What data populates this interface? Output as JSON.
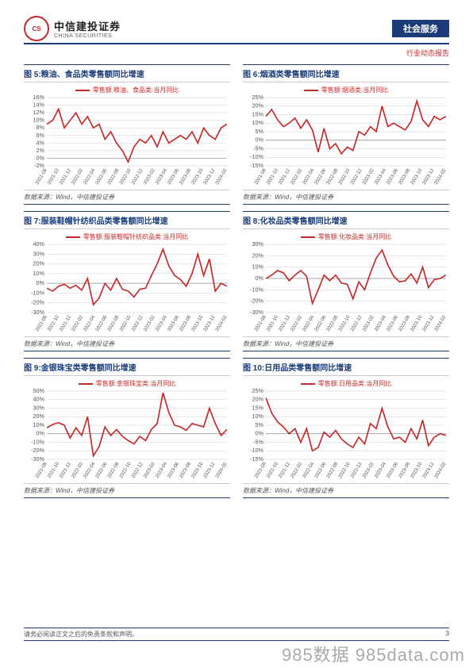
{
  "header": {
    "logo_cn": "中信建投证券",
    "logo_en": "CHINA SECURITIES",
    "tag": "社会服务",
    "sub": "行业动态报告"
  },
  "source_label": "数据来源：Wind，中信建投证券",
  "x_ticks": [
    "2021-08",
    "2021-10",
    "2021-12",
    "2022-02",
    "2022-04",
    "2022-06",
    "2022-08",
    "2022-10",
    "2022-12",
    "2023-02",
    "2023-04",
    "2023-06",
    "2023-08",
    "2023-10",
    "2023-12",
    "2024-02"
  ],
  "charts": [
    {
      "title": "图 5:粮油、食品类零售额同比增速",
      "legend": "零售额:粮油、食品类:当月同比",
      "ymin": -2,
      "ymax": 16,
      "y_ticks": [
        -2,
        0,
        2,
        4,
        6,
        8,
        10,
        12,
        14,
        16
      ],
      "y_fmt": "pct_pos",
      "values": [
        9,
        10,
        13,
        8,
        10,
        12,
        9,
        11,
        8,
        9,
        5,
        7,
        4,
        2,
        -1,
        3,
        5,
        4,
        6,
        3,
        7,
        4,
        5,
        6,
        5,
        7,
        4,
        8,
        6,
        5,
        8,
        9
      ]
    },
    {
      "title": "图 6:烟酒类零售额同比增速",
      "legend": "零售额:烟酒类:当月同比",
      "ymin": -15,
      "ymax": 25,
      "y_ticks": [
        -15,
        -10,
        -5,
        0,
        5,
        10,
        15,
        20,
        25
      ],
      "y_fmt": "pct",
      "values": [
        14,
        18,
        12,
        8,
        10,
        13,
        7,
        12,
        6,
        -7,
        7,
        -5,
        -2,
        -8,
        -4,
        -6,
        5,
        3,
        8,
        5,
        20,
        8,
        10,
        8,
        6,
        11,
        23,
        12,
        8,
        14,
        12,
        14
      ]
    },
    {
      "title": "图 7:服装鞋帽针纺织品类零售额同比增速",
      "legend": "零售额:服装鞋帽针纺织品类:当月同比",
      "ymin": -30,
      "ymax": 40,
      "y_ticks": [
        -30,
        -20,
        -10,
        0,
        10,
        20,
        30,
        40
      ],
      "y_fmt": "pct",
      "values": [
        -5,
        -8,
        -3,
        -1,
        -5,
        -2,
        -7,
        5,
        -22,
        -15,
        0,
        -7,
        5,
        -6,
        -8,
        -14,
        -6,
        -5,
        8,
        20,
        35,
        18,
        8,
        4,
        -3,
        10,
        30,
        8,
        25,
        -8,
        0,
        -3
      ]
    },
    {
      "title": "图 8:化妆品类零售额同比增速",
      "legend": "零售额:化妆品类:当月同比",
      "ymin": -30,
      "ymax": 30,
      "y_ticks": [
        -30,
        -20,
        -10,
        0,
        10,
        20,
        30
      ],
      "y_fmt": "pct",
      "values": [
        0,
        3,
        7,
        5,
        -2,
        3,
        7,
        2,
        -22,
        -10,
        3,
        -2,
        3,
        -4,
        -5,
        -18,
        -3,
        -10,
        5,
        18,
        25,
        12,
        2,
        -3,
        -2,
        4,
        -4,
        10,
        -8,
        -1,
        0,
        3
      ]
    },
    {
      "title": "图 9:金银珠宝类零售额同比增速",
      "legend": "零售额:金银珠宝类:当月同比",
      "ymin": -30,
      "ymax": 50,
      "y_ticks": [
        -30,
        -20,
        -10,
        0,
        10,
        20,
        30,
        40,
        50
      ],
      "y_fmt": "pct",
      "values": [
        7,
        11,
        13,
        10,
        -5,
        7,
        -2,
        20,
        -26,
        -15,
        8,
        -2,
        5,
        -3,
        -8,
        -12,
        -3,
        -8,
        5,
        12,
        48,
        25,
        10,
        8,
        4,
        12,
        10,
        8,
        30,
        12,
        -2,
        5
      ]
    },
    {
      "title": "图 10:日用品类零售额同比增速",
      "legend": "零售额:日用品类:当月同比",
      "ymin": -15,
      "ymax": 25,
      "y_ticks": [
        -15,
        -10,
        -5,
        0,
        5,
        10,
        15,
        20,
        25
      ],
      "y_fmt": "pct",
      "values": [
        21,
        12,
        7,
        4,
        0,
        3,
        -5,
        3,
        -10,
        -8,
        1,
        -2,
        2,
        -3,
        -6,
        -8,
        -2,
        -6,
        6,
        3,
        15,
        4,
        -3,
        -2,
        -5,
        3,
        -3,
        8,
        -7,
        -2,
        0,
        -1
      ]
    }
  ],
  "footer": {
    "disclaimer": "请务必阅读正文之后的免责条款和声明。",
    "page": "3"
  },
  "watermark": "985数据 985data.com",
  "colors": {
    "line": "#c62828",
    "grid": "#ccc",
    "axis": "#888",
    "brand": "#1b3c78"
  }
}
